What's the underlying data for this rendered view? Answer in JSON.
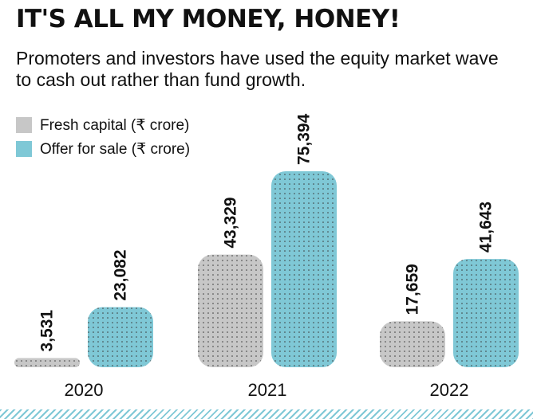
{
  "title": "IT'S ALL MY MONEY, HONEY!",
  "subtitle": "Promoters and investors have used the equity market wave to cash out rather than fund growth.",
  "colors": {
    "fresh": "#c7c7c7",
    "ofs": "#7fc8d6",
    "dots": "#3a3a3a"
  },
  "chart_data": {
    "type": "bar",
    "title": "IT'S ALL MY MONEY, HONEY!",
    "categories": [
      "2020",
      "2021",
      "2022"
    ],
    "series": [
      {
        "name": "Fresh capital (₹ crore)",
        "values": [
          3531,
          43329,
          17659
        ],
        "labels": [
          "3,531",
          "43,329",
          "17,659"
        ]
      },
      {
        "name": "Offer for sale (₹ crore)",
        "values": [
          23082,
          75394,
          41643
        ],
        "labels": [
          "23,082",
          "75,394",
          "41,643"
        ]
      }
    ],
    "xlabel": "",
    "ylabel": "",
    "ylim": [
      0,
      75394
    ],
    "legend": "top-left",
    "grid": false
  }
}
